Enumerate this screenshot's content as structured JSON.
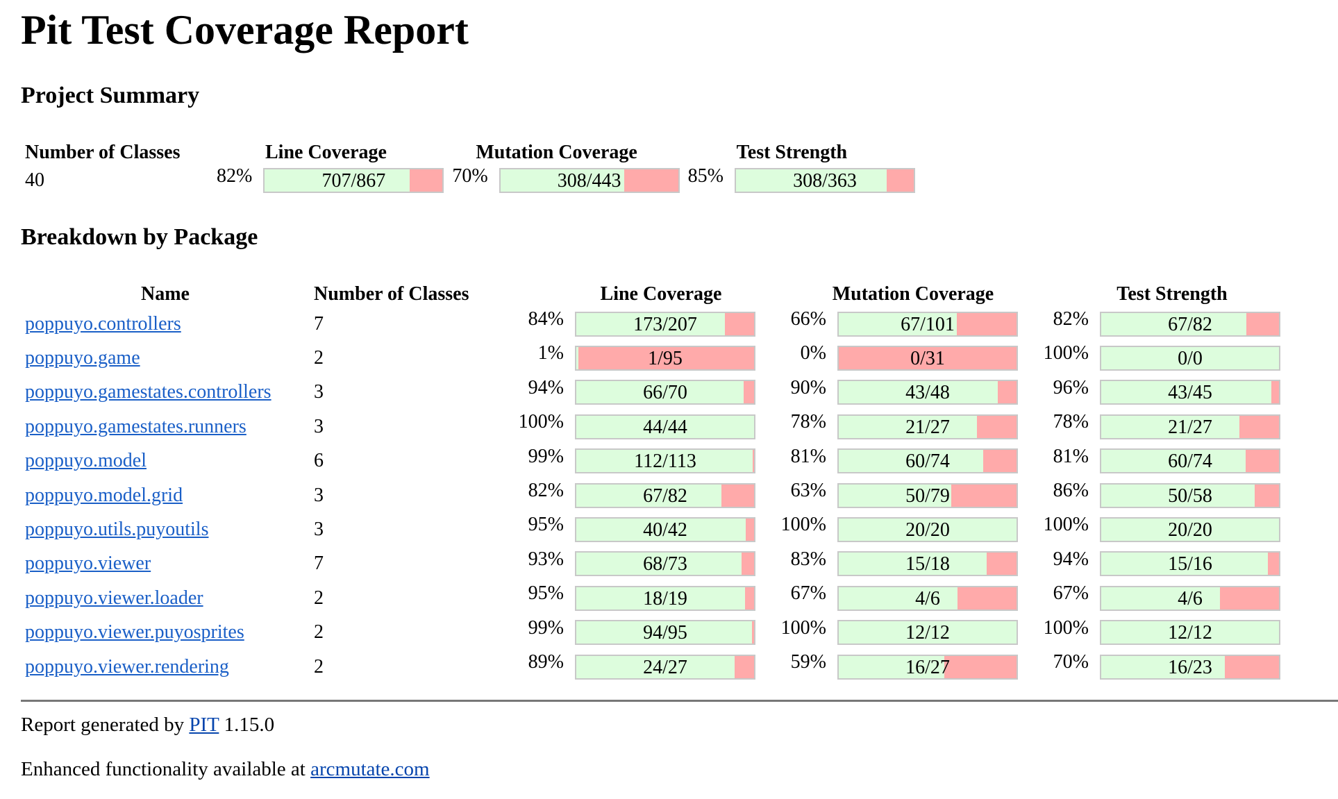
{
  "title": "Pit Test Coverage Report",
  "summary": {
    "heading": "Project Summary",
    "headers": {
      "classes": "Number of Classes",
      "line": "Line Coverage",
      "mutation": "Mutation Coverage",
      "strength": "Test Strength"
    },
    "classes": "40",
    "line": {
      "pct": "82%",
      "label": "707/867",
      "ratio": 0.8155
    },
    "mutation": {
      "pct": "70%",
      "label": "308/443",
      "ratio": 0.6953
    },
    "strength": {
      "pct": "85%",
      "label": "308/363",
      "ratio": 0.8485
    }
  },
  "breakdown": {
    "heading": "Breakdown by Package",
    "headers": {
      "name": "Name",
      "classes": "Number of Classes",
      "line": "Line Coverage",
      "mutation": "Mutation Coverage",
      "strength": "Test Strength"
    },
    "rows": [
      {
        "name": "poppuyo.controllers",
        "classes": "7",
        "line": {
          "pct": "84%",
          "label": "173/207",
          "ratio": 0.8357
        },
        "mutation": {
          "pct": "66%",
          "label": "67/101",
          "ratio": 0.6634
        },
        "strength": {
          "pct": "82%",
          "label": "67/82",
          "ratio": 0.8171
        }
      },
      {
        "name": "poppuyo.game",
        "classes": "2",
        "line": {
          "pct": "1%",
          "label": "1/95",
          "ratio": 0.0105
        },
        "mutation": {
          "pct": "0%",
          "label": "0/31",
          "ratio": 0
        },
        "strength": {
          "pct": "100%",
          "label": "0/0",
          "ratio": 1
        }
      },
      {
        "name": "poppuyo.gamestates.controllers",
        "classes": "3",
        "line": {
          "pct": "94%",
          "label": "66/70",
          "ratio": 0.9429
        },
        "mutation": {
          "pct": "90%",
          "label": "43/48",
          "ratio": 0.8958
        },
        "strength": {
          "pct": "96%",
          "label": "43/45",
          "ratio": 0.9556
        }
      },
      {
        "name": "poppuyo.gamestates.runners",
        "classes": "3",
        "line": {
          "pct": "100%",
          "label": "44/44",
          "ratio": 1
        },
        "mutation": {
          "pct": "78%",
          "label": "21/27",
          "ratio": 0.7778
        },
        "strength": {
          "pct": "78%",
          "label": "21/27",
          "ratio": 0.7778
        }
      },
      {
        "name": "poppuyo.model",
        "classes": "6",
        "line": {
          "pct": "99%",
          "label": "112/113",
          "ratio": 0.9912
        },
        "mutation": {
          "pct": "81%",
          "label": "60/74",
          "ratio": 0.8108
        },
        "strength": {
          "pct": "81%",
          "label": "60/74",
          "ratio": 0.8108
        }
      },
      {
        "name": "poppuyo.model.grid",
        "classes": "3",
        "line": {
          "pct": "82%",
          "label": "67/82",
          "ratio": 0.8171
        },
        "mutation": {
          "pct": "63%",
          "label": "50/79",
          "ratio": 0.6329
        },
        "strength": {
          "pct": "86%",
          "label": "50/58",
          "ratio": 0.8621
        }
      },
      {
        "name": "poppuyo.utils.puyoutils",
        "classes": "3",
        "line": {
          "pct": "95%",
          "label": "40/42",
          "ratio": 0.9524
        },
        "mutation": {
          "pct": "100%",
          "label": "20/20",
          "ratio": 1
        },
        "strength": {
          "pct": "100%",
          "label": "20/20",
          "ratio": 1
        }
      },
      {
        "name": "poppuyo.viewer",
        "classes": "7",
        "line": {
          "pct": "93%",
          "label": "68/73",
          "ratio": 0.9315
        },
        "mutation": {
          "pct": "83%",
          "label": "15/18",
          "ratio": 0.8333
        },
        "strength": {
          "pct": "94%",
          "label": "15/16",
          "ratio": 0.9375
        }
      },
      {
        "name": "poppuyo.viewer.loader",
        "classes": "2",
        "line": {
          "pct": "95%",
          "label": "18/19",
          "ratio": 0.9474
        },
        "mutation": {
          "pct": "67%",
          "label": "4/6",
          "ratio": 0.6667
        },
        "strength": {
          "pct": "67%",
          "label": "4/6",
          "ratio": 0.6667
        }
      },
      {
        "name": "poppuyo.viewer.puyosprites",
        "classes": "2",
        "line": {
          "pct": "99%",
          "label": "94/95",
          "ratio": 0.9895
        },
        "mutation": {
          "pct": "100%",
          "label": "12/12",
          "ratio": 1
        },
        "strength": {
          "pct": "100%",
          "label": "12/12",
          "ratio": 1
        }
      },
      {
        "name": "poppuyo.viewer.rendering",
        "classes": "2",
        "line": {
          "pct": "89%",
          "label": "24/27",
          "ratio": 0.8889
        },
        "mutation": {
          "pct": "59%",
          "label": "16/27",
          "ratio": 0.5926
        },
        "strength": {
          "pct": "70%",
          "label": "16/23",
          "ratio": 0.6957
        }
      }
    ]
  },
  "footer": {
    "generated_prefix": "Report generated by ",
    "pit_link": "PIT",
    "version": " 1.15.0",
    "enhanced_prefix": "Enhanced functionality available at ",
    "arcmutate_link": "arcmutate.com"
  },
  "colors": {
    "covered": "#ddfddd",
    "uncovered": "#ffaaaa",
    "bar_border": "#c8c8c8",
    "link": "#1a5fc7"
  }
}
